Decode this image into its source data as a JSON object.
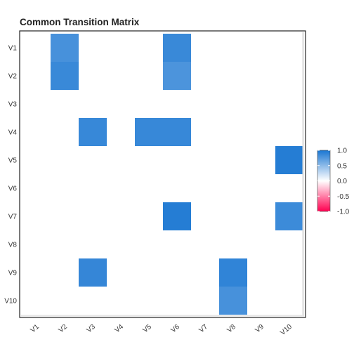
{
  "chart_data": {
    "type": "heatmap",
    "title": "Common Transition Matrix",
    "rows": [
      "V1",
      "V2",
      "V3",
      "V4",
      "V5",
      "V6",
      "V7",
      "V8",
      "V9",
      "V10"
    ],
    "columns": [
      "V1",
      "V2",
      "V3",
      "V4",
      "V5",
      "V6",
      "V7",
      "V8",
      "V9",
      "V10"
    ],
    "values": [
      [
        0,
        0.8,
        0,
        0,
        0,
        0.86,
        0,
        0,
        0,
        0
      ],
      [
        0,
        0.86,
        0,
        0,
        0,
        0.78,
        0,
        0,
        0,
        0
      ],
      [
        0,
        0,
        0,
        0,
        0,
        0,
        0,
        0,
        0,
        0
      ],
      [
        0,
        0,
        0.87,
        0,
        0.87,
        0.87,
        0,
        0,
        0,
        0
      ],
      [
        0,
        0,
        0,
        0,
        0,
        0,
        0,
        0,
        0,
        0.95
      ],
      [
        0,
        0,
        0,
        0,
        0,
        0,
        0,
        0,
        0,
        0
      ],
      [
        0,
        0,
        0,
        0,
        0,
        0.95,
        0,
        0,
        0,
        0.85
      ],
      [
        0,
        0,
        0,
        0,
        0,
        0,
        0,
        0,
        0,
        0
      ],
      [
        0,
        0,
        0.88,
        0,
        0,
        0,
        0,
        0.9,
        0,
        0
      ],
      [
        0,
        0,
        0,
        0,
        0,
        0,
        0,
        0.8,
        0,
        0
      ]
    ],
    "legend": {
      "ticks": [
        "1.0",
        "0.5",
        "0.0",
        "-0.5",
        "-1.0"
      ],
      "tick_values": [
        1.0,
        0.5,
        0.0,
        -0.5,
        -1.0
      ],
      "range": [
        -1.0,
        1.0
      ],
      "placement": "right"
    },
    "colors": {
      "high": "#1976d2",
      "mid": "#ffffff",
      "low": "#ff0050"
    },
    "grid": false
  }
}
